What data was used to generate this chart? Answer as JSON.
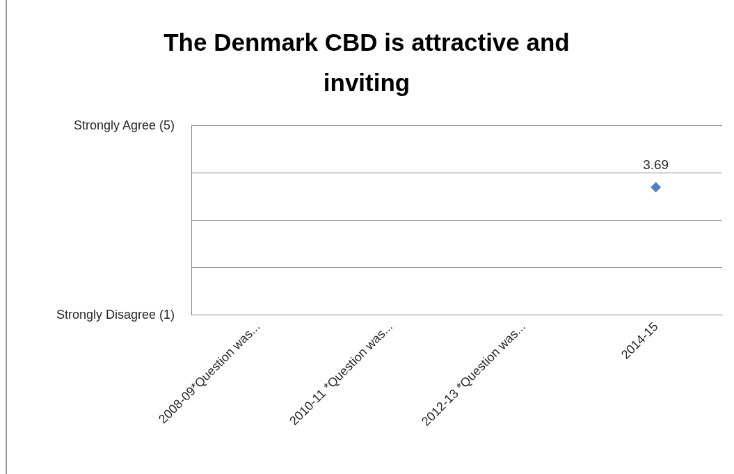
{
  "chart_data": {
    "type": "scatter",
    "title": "The Denmark CBD is attractive and inviting",
    "categories": [
      "2008-09*Question was...",
      "2010-11 *Question was...",
      "2012-13 *Question was...",
      "2014-15"
    ],
    "values": [
      null,
      null,
      null,
      3.69
    ],
    "color": "#4f81bd",
    "marker": "diamond",
    "data_labels": true,
    "ylim": [
      1,
      5
    ],
    "yticks": [
      {
        "value": 1,
        "label": "Strongly Disagree (1)"
      },
      {
        "value": 2,
        "label": null
      },
      {
        "value": 3,
        "label": null
      },
      {
        "value": 4,
        "label": null
      },
      {
        "value": 5,
        "label": "Strongly Agree (5)"
      }
    ],
    "grid": "y"
  }
}
